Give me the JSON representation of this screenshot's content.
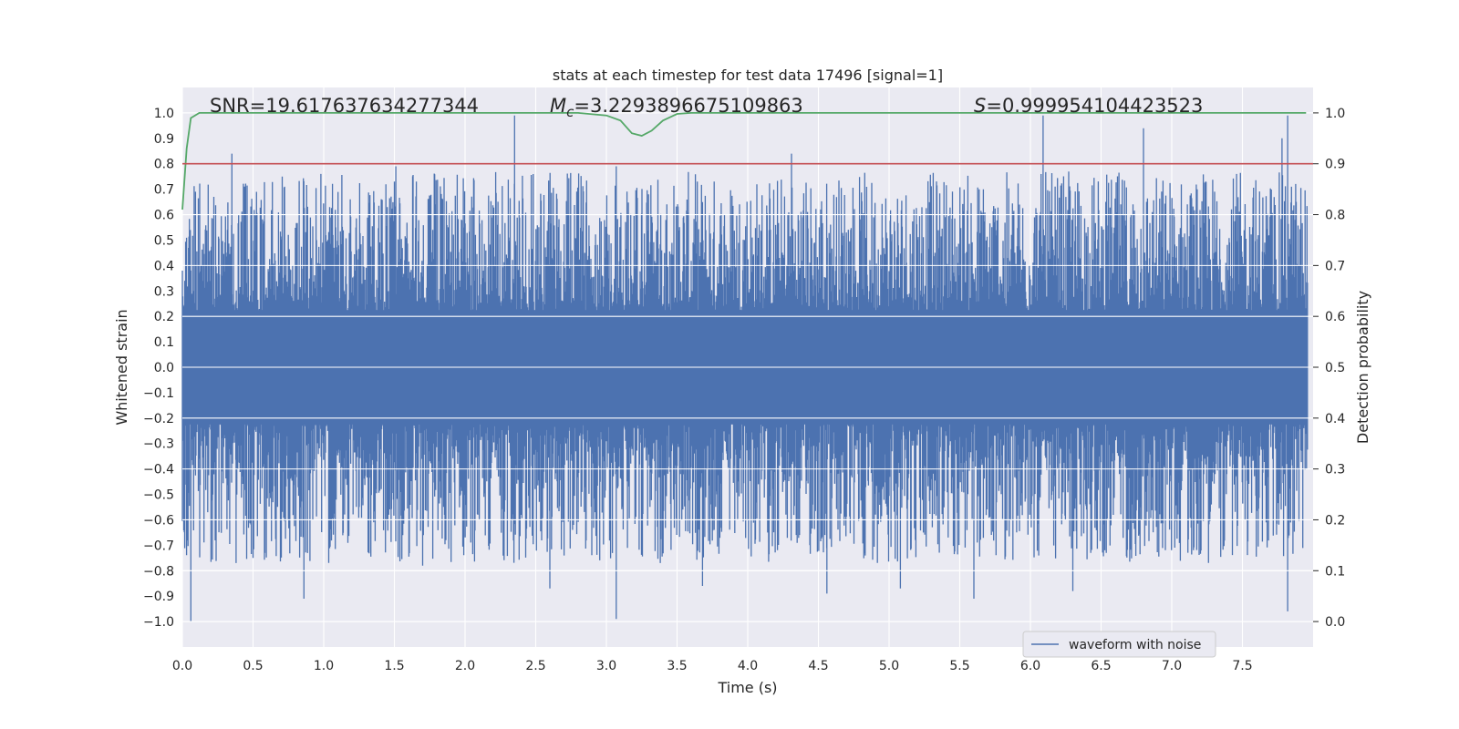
{
  "chart_data": {
    "type": "line",
    "title": "stats at each timestep for test data 17496 [signal=1]",
    "xlabel": "Time (s)",
    "ylabel": "Whitened strain",
    "y2label": "Detection probability",
    "xlim": [
      0.0,
      8.0
    ],
    "ylim": [
      -1.1,
      1.1
    ],
    "y2lim": [
      -0.05,
      1.05
    ],
    "xticks": [
      0.0,
      0.5,
      1.0,
      1.5,
      2.0,
      2.5,
      3.0,
      3.5,
      4.0,
      4.5,
      5.0,
      5.5,
      6.0,
      6.5,
      7.0,
      7.5
    ],
    "xtick_labels": [
      "0.0",
      "0.5",
      "1.0",
      "1.5",
      "2.0",
      "2.5",
      "3.0",
      "3.5",
      "4.0",
      "4.5",
      "5.0",
      "5.5",
      "6.0",
      "6.5",
      "7.0",
      "7.5"
    ],
    "yticks": [
      1.0,
      0.9,
      0.8,
      0.7,
      0.6,
      0.5,
      0.4,
      0.3,
      0.2,
      0.1,
      0.0,
      -0.1,
      -0.2,
      -0.3,
      -0.4,
      -0.5,
      -0.6,
      -0.7,
      -0.8,
      -0.9,
      -1.0
    ],
    "ytick_labels": [
      "1.0",
      "0.9",
      "0.8",
      "0.7",
      "0.6",
      "0.5",
      "0.4",
      "0.3",
      "0.2",
      "0.1",
      "0.0",
      "−0.1",
      "−0.2",
      "−0.3",
      "−0.4",
      "−0.5",
      "−0.6",
      "−0.7",
      "−0.8",
      "−0.9",
      "−1.0"
    ],
    "y2ticks": [
      1.0,
      0.9,
      0.8,
      0.7,
      0.6,
      0.5,
      0.4,
      0.3,
      0.2,
      0.1,
      0.0
    ],
    "y2tick_labels": [
      "1.0",
      "0.9",
      "0.8",
      "0.7",
      "0.6",
      "0.5",
      "0.4",
      "0.3",
      "0.2",
      "0.1",
      "0.0"
    ],
    "grid": true,
    "legend_position": "lower-right",
    "stats": {
      "snr": "SNR=19.617637634277344",
      "mc_symbol": "M",
      "mc_subscript": "c",
      "mc_value": "=3.2293896675109863",
      "s_symbol": "S",
      "s_value": "=0.999954104423523"
    },
    "series": [
      {
        "name": "waveform with noise",
        "axis": "left",
        "color": "#4c72b0",
        "style": "dense-noise",
        "approx_envelope": {
          "typical_upper": 0.45,
          "typical_lower": -0.45
        },
        "peaks": [
          {
            "x": 0.06,
            "y": -1.0
          },
          {
            "x": 0.35,
            "y": 0.84
          },
          {
            "x": 0.38,
            "y": -0.77
          },
          {
            "x": 0.44,
            "y": 0.71
          },
          {
            "x": 0.5,
            "y": -0.75
          },
          {
            "x": 0.86,
            "y": -0.91
          },
          {
            "x": 0.98,
            "y": 0.76
          },
          {
            "x": 1.51,
            "y": 0.79
          },
          {
            "x": 1.7,
            "y": -0.78
          },
          {
            "x": 2.35,
            "y": 0.99
          },
          {
            "x": 2.6,
            "y": -0.87
          },
          {
            "x": 3.07,
            "y": -0.99
          },
          {
            "x": 3.07,
            "y": 0.79
          },
          {
            "x": 3.68,
            "y": -0.86
          },
          {
            "x": 4.31,
            "y": 0.84
          },
          {
            "x": 4.56,
            "y": -0.89
          },
          {
            "x": 5.08,
            "y": -0.87
          },
          {
            "x": 5.6,
            "y": -0.91
          },
          {
            "x": 6.09,
            "y": 0.99
          },
          {
            "x": 6.3,
            "y": -0.88
          },
          {
            "x": 6.8,
            "y": 0.94
          },
          {
            "x": 7.78,
            "y": 0.9
          },
          {
            "x": 7.82,
            "y": 0.99
          },
          {
            "x": 7.82,
            "y": -0.96
          }
        ]
      },
      {
        "axis": "right",
        "color": "#55a868",
        "x": [
          0.0,
          0.03,
          0.06,
          0.12,
          0.2,
          1.0,
          2.0,
          2.8,
          3.0,
          3.1,
          3.18,
          3.25,
          3.32,
          3.4,
          3.5,
          3.6,
          4.0,
          5.0,
          6.0,
          7.0,
          7.95
        ],
        "values": [
          0.81,
          0.93,
          0.99,
          1.0,
          1.0,
          1.0,
          1.0,
          1.0,
          0.995,
          0.985,
          0.96,
          0.955,
          0.965,
          0.985,
          0.998,
          1.0,
          1.0,
          1.0,
          1.0,
          1.0,
          1.0
        ]
      },
      {
        "axis": "right",
        "color": "#c44e52",
        "constant": 0.9
      }
    ]
  }
}
